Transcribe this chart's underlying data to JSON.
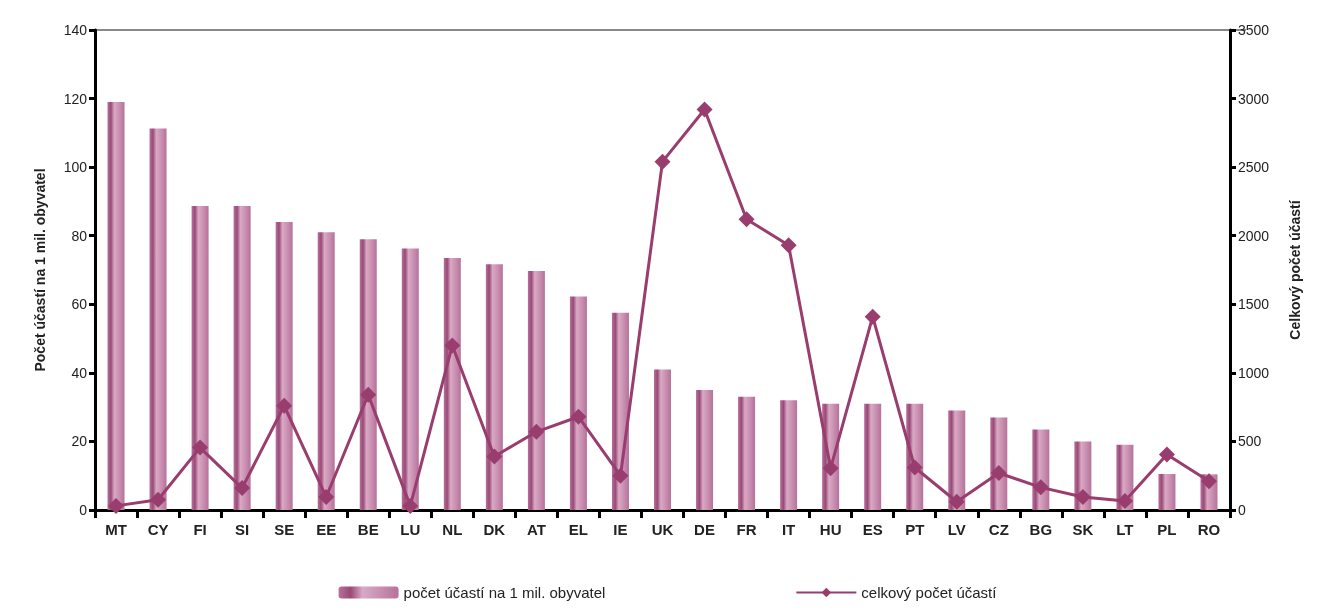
{
  "chart_data": {
    "type": "bar",
    "ylabel": "Počet účastí na 1 mil. obyvatel",
    "y2label": "Celkový počet účastí",
    "categories": [
      "MT",
      "CY",
      "FI",
      "SI",
      "SE",
      "EE",
      "BE",
      "LU",
      "NL",
      "DK",
      "AT",
      "EL",
      "IE",
      "UK",
      "DE",
      "FR",
      "IT",
      "HU",
      "ES",
      "PT",
      "LV",
      "CZ",
      "BG",
      "SK",
      "LT",
      "PL",
      "RO"
    ],
    "series": [
      {
        "name": "počet účastí na 1 mil. obyvatel",
        "color": "#b7719a",
        "values": [
          119,
          111.3,
          88.7,
          88.7,
          84,
          81,
          79,
          76.3,
          73.5,
          71.7,
          69.7,
          62.3,
          57.5,
          41,
          35,
          33,
          32,
          31,
          31,
          31,
          29,
          27,
          23.5,
          20,
          19,
          10.5,
          10.4
        ]
      },
      {
        "name": "celkový počet účastí",
        "type": "line",
        "axis": "y2",
        "color": "#993d6e",
        "values": [
          30,
          75,
          455,
          160,
          760,
          95,
          840,
          30,
          1200,
          390,
          570,
          680,
          250,
          2540,
          2920,
          2120,
          1930,
          305,
          1410,
          310,
          60,
          270,
          165,
          95,
          65,
          405,
          210
        ]
      }
    ],
    "ylim": [
      0,
      140
    ],
    "yticks": [
      0,
      20,
      40,
      60,
      80,
      100,
      120,
      140
    ],
    "y2lim": [
      0,
      3500
    ],
    "y2ticks": [
      0,
      500,
      1000,
      1500,
      2000,
      2500,
      3000,
      3500
    ],
    "marker": "diamond",
    "line_style": "solid",
    "legend": "bottom",
    "grid": false
  }
}
